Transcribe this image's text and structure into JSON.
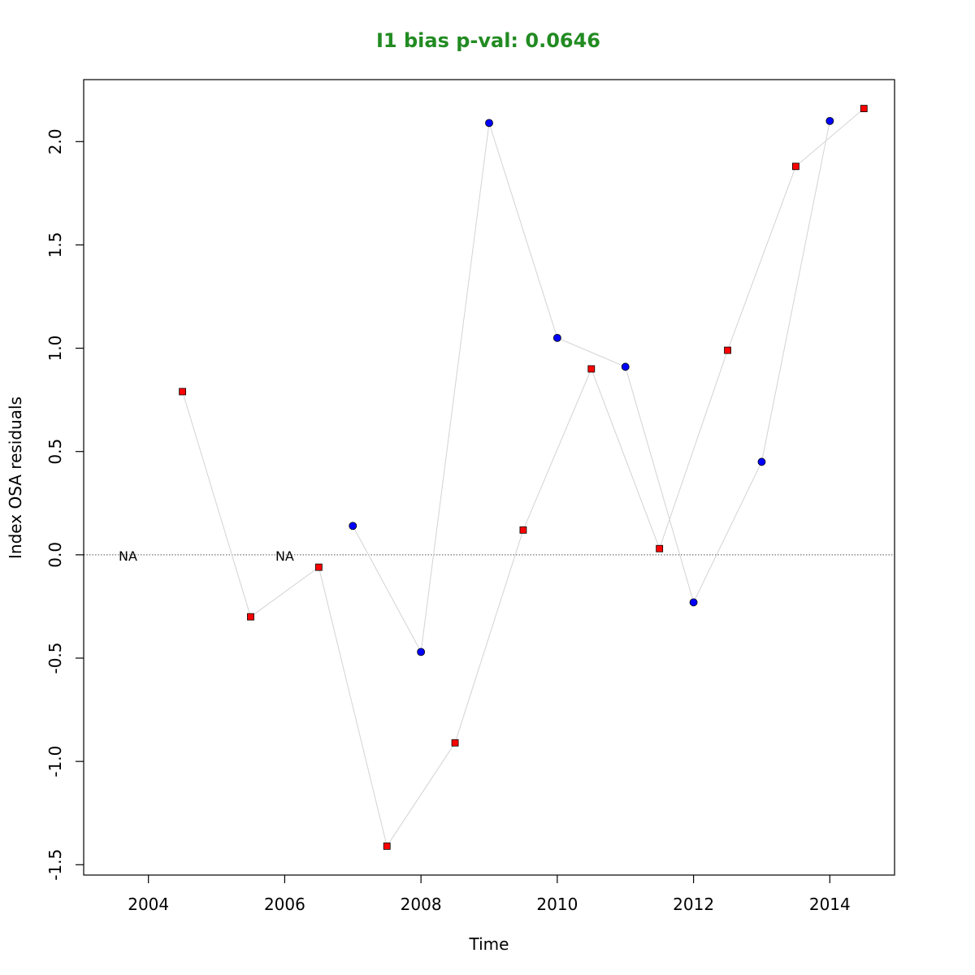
{
  "chart_data": {
    "type": "scatter",
    "title": "I1 bias p-val: 0.0646",
    "title_color": "#228B22",
    "xlabel": "Time",
    "ylabel": "Index OSA residuals",
    "xlim": [
      2003.05,
      2014.95
    ],
    "ylim": [
      -1.55,
      2.3
    ],
    "x_ticks": [
      2004,
      2006,
      2008,
      2010,
      2012,
      2014
    ],
    "x_tick_labels": [
      "2004",
      "2006",
      "2008",
      "2010",
      "2012",
      "2014"
    ],
    "y_ticks": [
      -1.5,
      -1.0,
      -0.5,
      0.0,
      0.5,
      1.0,
      1.5,
      2.0
    ],
    "y_tick_labels": [
      "-1.5",
      "-1.0",
      "-0.5",
      "0.0",
      "0.5",
      "1.0",
      "1.5",
      "2.0"
    ],
    "reference_line": 0,
    "grid": false,
    "line_color": "#d3d3d3",
    "series": [
      {
        "marker": "circle",
        "color": "#0000ff",
        "points": [
          {
            "x": 2007,
            "y": 0.14
          },
          {
            "x": 2008,
            "y": -0.47
          },
          {
            "x": 2009,
            "y": 2.09
          },
          {
            "x": 2010,
            "y": 1.05
          },
          {
            "x": 2011,
            "y": 0.91
          },
          {
            "x": 2012,
            "y": -0.23
          },
          {
            "x": 2013,
            "y": 0.45
          },
          {
            "x": 2014,
            "y": 2.1
          }
        ]
      },
      {
        "marker": "square",
        "color": "#ff0000",
        "points": [
          {
            "x": 2004.5,
            "y": 0.79
          },
          {
            "x": 2005.5,
            "y": -0.3
          },
          {
            "x": 2006.5,
            "y": -0.06
          },
          {
            "x": 2007.5,
            "y": -1.41
          },
          {
            "x": 2008.5,
            "y": -0.91
          },
          {
            "x": 2009.5,
            "y": 0.12
          },
          {
            "x": 2010.5,
            "y": 0.9
          },
          {
            "x": 2011.5,
            "y": 0.03
          },
          {
            "x": 2012.5,
            "y": 0.99
          },
          {
            "x": 2013.5,
            "y": 1.88
          },
          {
            "x": 2014.5,
            "y": 2.16
          }
        ]
      }
    ],
    "annotations": [
      {
        "text": "NA",
        "x": 2003.7,
        "y": 0.0
      },
      {
        "text": "NA",
        "x": 2006.0,
        "y": 0.0
      }
    ]
  }
}
